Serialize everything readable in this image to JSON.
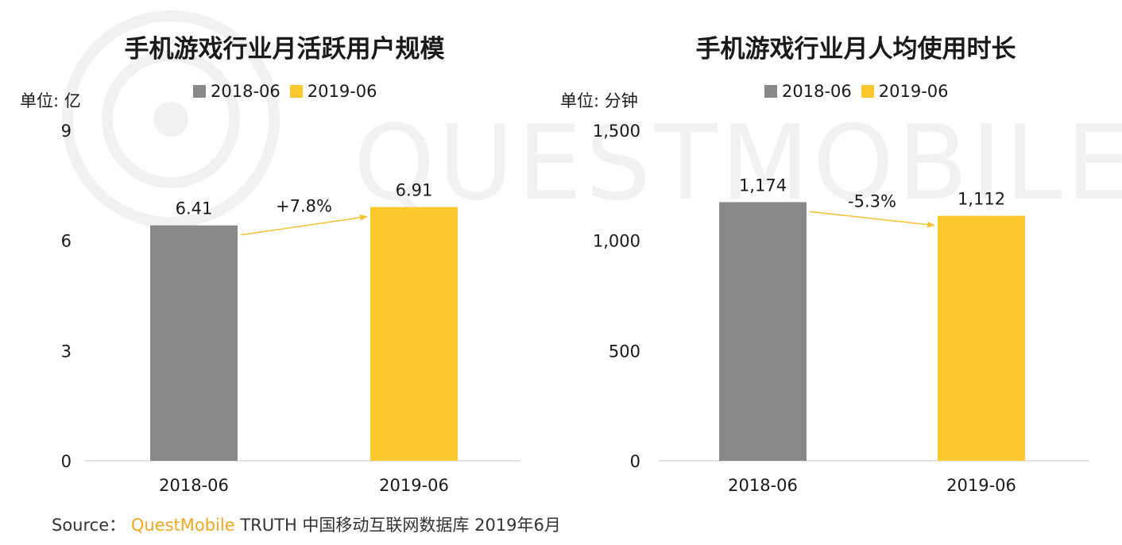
{
  "watermark": "QUESTMOBILE",
  "colors": {
    "series_2018": "#898989",
    "series_2019": "#fbc92e",
    "arrow": "#f5c232",
    "axis": "#d9d9d9"
  },
  "legend": [
    "2018-06",
    "2019-06"
  ],
  "source": {
    "label": "Source：",
    "brand": "QuestMobile",
    "rest": "TRUTH 中国移动互联网数据库 2019年6月"
  },
  "chart_data": [
    {
      "type": "bar",
      "title": "手机游戏行业月活跃用户规模",
      "unit": "单位: 亿",
      "categories": [
        "2018-06",
        "2019-06"
      ],
      "values": [
        6.41,
        6.91
      ],
      "value_labels": [
        "6.41",
        "6.91"
      ],
      "ylim": [
        0,
        9
      ],
      "yticks": [
        0,
        3,
        6,
        9
      ],
      "ytick_labels": [
        "0",
        "3",
        "6",
        "9"
      ],
      "change_label": "+7.8%",
      "legend": "top-center"
    },
    {
      "type": "bar",
      "title": "手机游戏行业月人均使用时长",
      "unit": "单位: 分钟",
      "categories": [
        "2018-06",
        "2019-06"
      ],
      "values": [
        1174,
        1112
      ],
      "value_labels": [
        "1,174",
        "1,112"
      ],
      "ylim": [
        0,
        1500
      ],
      "yticks": [
        0,
        500,
        1000,
        1500
      ],
      "ytick_labels": [
        "0",
        "500",
        "1,000",
        "1,500"
      ],
      "change_label": "-5.3%",
      "legend": "top-center"
    }
  ]
}
